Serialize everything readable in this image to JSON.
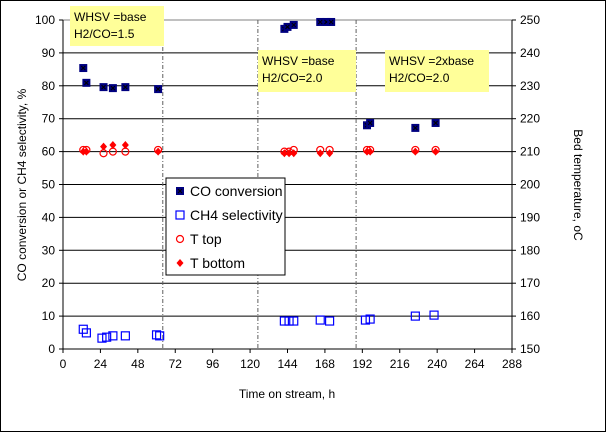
{
  "chart_data": {
    "type": "scatter",
    "xlabel": "Time on stream, h",
    "ylabel": "CO conversion or CH4 selectivity, %",
    "y2label": "Bed temperature, oC",
    "xlim": [
      0,
      288
    ],
    "xticks": [
      0,
      24,
      48,
      72,
      96,
      120,
      144,
      168,
      192,
      216,
      240,
      264,
      288
    ],
    "ylim": [
      0,
      100
    ],
    "yticks": [
      0,
      10,
      20,
      30,
      40,
      50,
      60,
      70,
      80,
      90,
      100
    ],
    "y2lim": [
      150,
      250
    ],
    "y2ticks": [
      150,
      160,
      170,
      180,
      190,
      200,
      210,
      220,
      230,
      240,
      250
    ],
    "grid": true,
    "period_dividers": [
      64,
      125,
      188
    ],
    "annotations": [
      {
        "line1": "WHSV =base",
        "line2": "H2/CO=1.5"
      },
      {
        "line1": "WHSV =base",
        "line2": "H2/CO=2.0"
      },
      {
        "line1": "WHSV =2xbase",
        "line2": "H2/CO=2.0"
      }
    ],
    "legend_position": "center-left",
    "series": [
      {
        "name": "CO conversion",
        "axis": "left",
        "marker": "filled-square",
        "color": "#000080",
        "x": [
          13,
          15,
          26,
          32,
          40,
          61,
          142,
          144,
          148,
          165,
          169,
          172,
          195,
          197,
          226,
          239
        ],
        "y": [
          85.4,
          80.9,
          79.6,
          79.3,
          79.6,
          79.0,
          97.3,
          97.9,
          98.5,
          99.4,
          99.4,
          99.4,
          68.0,
          68.7,
          67.2,
          68.7
        ]
      },
      {
        "name": "CH4 selectivity",
        "axis": "left",
        "marker": "open-square",
        "color": "#0000ff",
        "x": [
          13,
          15,
          25,
          28,
          32,
          40,
          60,
          62,
          142,
          145,
          148,
          165,
          171,
          194,
          197,
          226,
          238
        ],
        "y": [
          6.0,
          4.9,
          3.3,
          3.6,
          4.0,
          4.0,
          4.3,
          4.0,
          8.5,
          8.5,
          8.5,
          8.8,
          8.5,
          8.8,
          9.1,
          10.0,
          10.3
        ]
      },
      {
        "name": "T top",
        "axis": "right",
        "marker": "open-circle",
        "color": "#ff0000",
        "x": [
          13,
          15,
          26,
          32,
          40,
          61,
          142,
          145,
          148,
          165,
          171,
          195,
          197,
          226,
          239
        ],
        "y": [
          210.5,
          210.5,
          209.5,
          210,
          210,
          210.5,
          210,
          210,
          210.5,
          210.5,
          210.5,
          210.5,
          210.5,
          210.5,
          210.5
        ]
      },
      {
        "name": "T bottom",
        "axis": "right",
        "marker": "filled-diamond",
        "color": "#ff0000",
        "x": [
          13,
          15,
          26,
          32,
          40,
          61,
          142,
          145,
          148,
          165,
          171,
          195,
          197,
          226,
          239
        ],
        "y": [
          210,
          210,
          211.5,
          212,
          212,
          210,
          209.5,
          209.5,
          209.5,
          209.5,
          209.5,
          210,
          210,
          210,
          210
        ]
      }
    ]
  }
}
